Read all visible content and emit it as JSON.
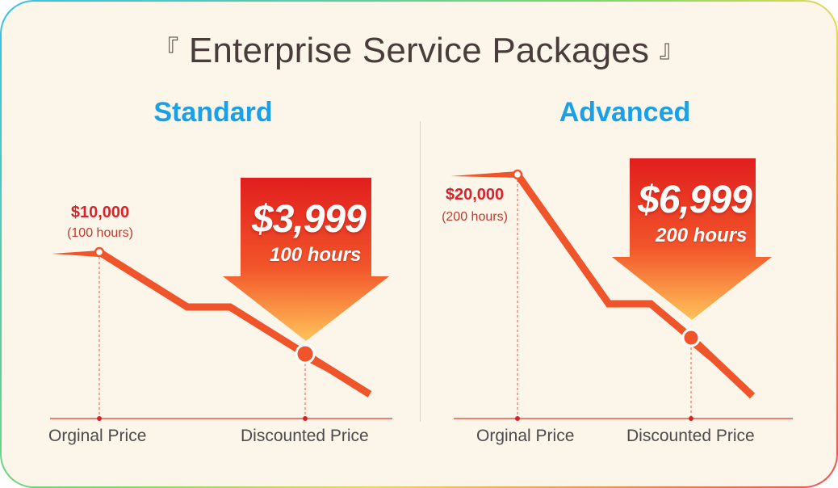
{
  "title": {
    "open_bracket": "『",
    "text": "Enterprise Service Packages",
    "close_bracket": "』"
  },
  "packages": [
    {
      "name": "Standard",
      "original_price": "$10,000",
      "original_hours": "(100 hours)",
      "discounted_price": "$3,999",
      "discounted_hours": "100 hours",
      "x_labels": [
        "Orginal Price",
        "Discounted Price"
      ]
    },
    {
      "name": "Advanced",
      "original_price": "$20,000",
      "original_hours": "(200 hours)",
      "discounted_price": "$6,999",
      "discounted_hours": "200 hours",
      "x_labels": [
        "Orginal Price",
        "Discounted Price"
      ]
    }
  ],
  "colors": {
    "plan_title": "#1aa0e6",
    "price_red": "#d8232a",
    "line": "#f0542a",
    "arrow_top": "#e01e1e",
    "arrow_bottom": "#ffb347",
    "background": "#fcf6ea"
  }
}
